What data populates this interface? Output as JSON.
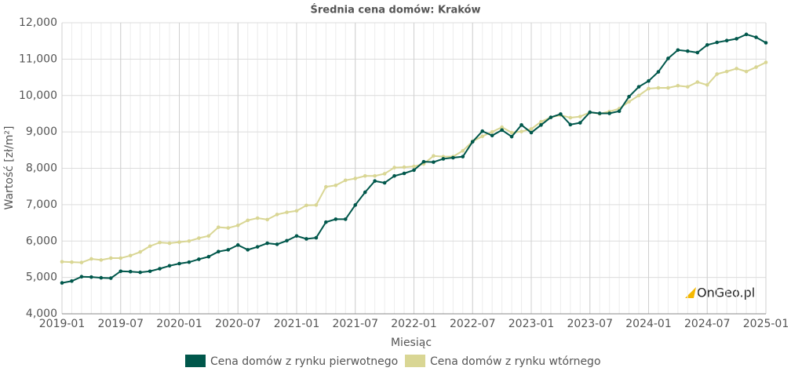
{
  "chart_data": {
    "type": "line",
    "title": "Średnia cena domów: Kraków",
    "xlabel": "Miesiąc",
    "ylabel": "Wartość [zł/m²]",
    "watermark": "OnGeo.pl",
    "x": [
      "2019-01",
      "2019-02",
      "2019-03",
      "2019-04",
      "2019-05",
      "2019-06",
      "2019-07",
      "2019-08",
      "2019-09",
      "2019-10",
      "2019-11",
      "2019-12",
      "2020-01",
      "2020-02",
      "2020-03",
      "2020-04",
      "2020-05",
      "2020-06",
      "2020-07",
      "2020-08",
      "2020-09",
      "2020-10",
      "2020-11",
      "2020-12",
      "2021-01",
      "2021-02",
      "2021-03",
      "2021-04",
      "2021-05",
      "2021-06",
      "2021-07",
      "2021-08",
      "2021-09",
      "2021-10",
      "2021-11",
      "2021-12",
      "2022-01",
      "2022-02",
      "2022-03",
      "2022-04",
      "2022-05",
      "2022-06",
      "2022-07",
      "2022-08",
      "2022-09",
      "2022-10",
      "2022-11",
      "2022-12",
      "2023-01",
      "2023-02",
      "2023-03",
      "2023-04",
      "2023-05",
      "2023-06",
      "2023-07",
      "2023-08",
      "2023-09",
      "2023-10",
      "2023-11",
      "2023-12",
      "2024-01",
      "2024-02",
      "2024-03",
      "2024-04",
      "2024-05",
      "2024-06",
      "2024-07",
      "2024-08",
      "2024-09",
      "2024-10",
      "2024-11",
      "2024-12",
      "2025-01"
    ],
    "series": [
      {
        "name": "Cena domów z rynku pierwotnego",
        "color": "#00574b",
        "values": [
          4850,
          4900,
          5020,
          5010,
          4990,
          4980,
          5170,
          5160,
          5140,
          5170,
          5240,
          5320,
          5380,
          5420,
          5500,
          5570,
          5710,
          5760,
          5890,
          5760,
          5840,
          5940,
          5910,
          6010,
          6140,
          6060,
          6090,
          6520,
          6600,
          6600,
          6990,
          7340,
          7650,
          7600,
          7790,
          7860,
          7950,
          8180,
          8170,
          8260,
          8290,
          8320,
          8730,
          9020,
          8900,
          9050,
          8870,
          9190,
          8980,
          9190,
          9400,
          9490,
          9200,
          9250,
          9540,
          9510,
          9510,
          9570,
          9970,
          10240,
          10400,
          10650,
          11020,
          11250,
          11220,
          11180,
          11390,
          11460,
          11510,
          11560,
          11680,
          11600,
          11450
        ]
      },
      {
        "name": "Cena domów z rynku wtórnego",
        "color": "#d9d694",
        "values": [
          5430,
          5420,
          5410,
          5510,
          5480,
          5530,
          5530,
          5600,
          5700,
          5860,
          5960,
          5940,
          5970,
          6000,
          6080,
          6140,
          6380,
          6360,
          6430,
          6570,
          6630,
          6590,
          6730,
          6790,
          6830,
          6980,
          6990,
          7490,
          7530,
          7670,
          7720,
          7790,
          7790,
          7850,
          8020,
          8030,
          8050,
          8120,
          8340,
          8320,
          8320,
          8480,
          8740,
          8880,
          9000,
          9130,
          8980,
          9010,
          9080,
          9280,
          9400,
          9460,
          9390,
          9420,
          9540,
          9500,
          9560,
          9640,
          9830,
          10000,
          10190,
          10210,
          10210,
          10270,
          10240,
          10370,
          10290,
          10590,
          10660,
          10740,
          10660,
          10780,
          10910
        ]
      }
    ],
    "ylim": [
      4000,
      12000
    ],
    "yticks": [
      {
        "value": 4000,
        "label": "4,000"
      },
      {
        "value": 5000,
        "label": "5,000"
      },
      {
        "value": 6000,
        "label": "6,000"
      },
      {
        "value": 7000,
        "label": "7,000"
      },
      {
        "value": 8000,
        "label": "8,000"
      },
      {
        "value": 9000,
        "label": "9,000"
      },
      {
        "value": 10000,
        "label": "10,000"
      },
      {
        "value": 11000,
        "label": "11,000"
      },
      {
        "value": 12000,
        "label": "12,000"
      }
    ],
    "xticks": [
      "2019-01",
      "2019-07",
      "2020-01",
      "2020-07",
      "2021-01",
      "2021-07",
      "2022-01",
      "2022-07",
      "2023-01",
      "2023-07",
      "2024-01",
      "2024-07",
      "2025-01"
    ],
    "grid": true
  }
}
